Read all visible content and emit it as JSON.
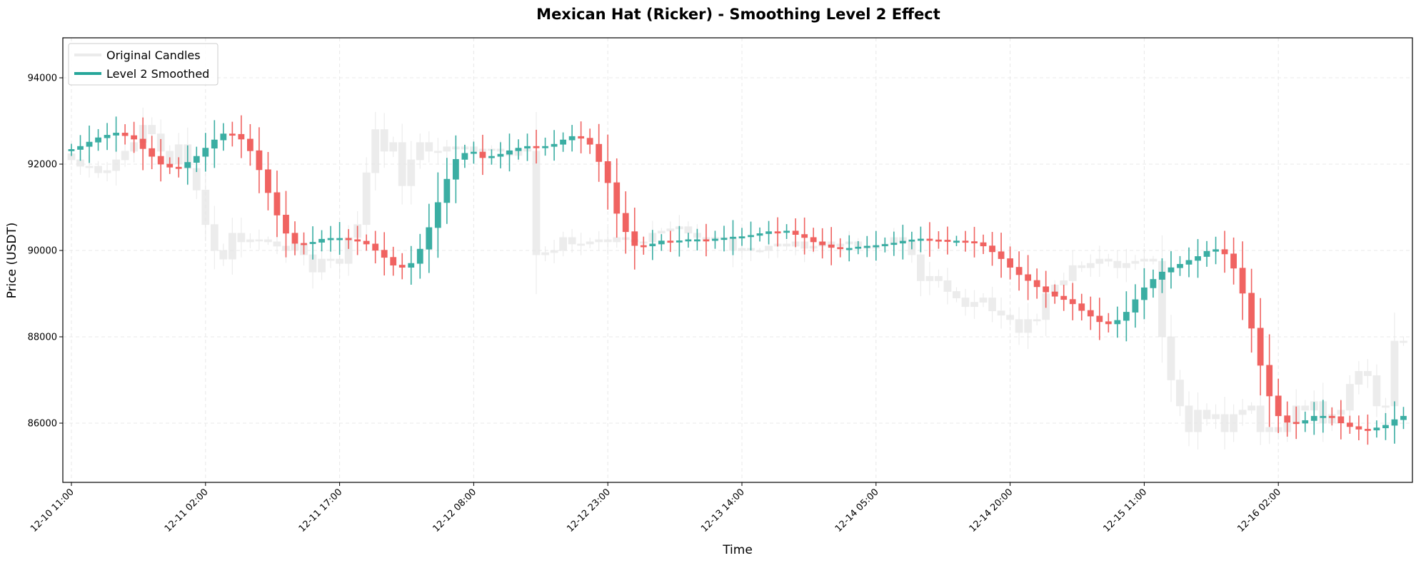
{
  "chart_data": {
    "type": "candlestick",
    "title": "Mexican Hat (Ricker) - Smoothing Level 2 Effect",
    "xlabel": "Time",
    "ylabel": "Price (USDT)",
    "ylim": [
      84628,
      94926
    ],
    "yticks": [
      86000,
      88000,
      90000,
      92000,
      94000
    ],
    "ytick_labels": [
      "86000",
      "88000",
      "90000",
      "92000",
      "94000"
    ],
    "x_interval": "1 hour",
    "xtick_every": 15,
    "xtick_labels": [
      "12-10 11:00",
      "12-11 02:00",
      "12-11 17:00",
      "12-12 08:00",
      "12-12 23:00",
      "12-13 14:00",
      "12-14 05:00",
      "12-14 20:00",
      "12-15 11:00",
      "12-16 02:00"
    ],
    "grid": true,
    "legend_position": "top-left",
    "legend": [
      "Original Candles",
      "Level 2 Smoothed"
    ],
    "colors": {
      "up": "#26a69a",
      "down": "#ef5350",
      "original": "#e6e6e6"
    },
    "series": [
      {
        "name": "Original Candles",
        "first_open": 92240,
        "close": [
          92100,
          91950,
          91950,
          91800,
          91850,
          92100,
          92300,
          92500,
          92900,
          92700,
          92300,
          92000,
          92450,
          91900,
          91400,
          90600,
          90000,
          89800,
          90400,
          90200,
          90250,
          90250,
          90200,
          90100,
          90000,
          90150,
          89900,
          89500,
          89800,
          89800,
          89700,
          90300,
          90600,
          91800,
          92800,
          92300,
          92500,
          91500,
          92100,
          92500,
          92300,
          92300,
          92400,
          92350,
          92400,
          92300,
          92350,
          92350,
          92300,
          92200,
          92350,
          92300,
          89900,
          89950,
          90000,
          90300,
          90150,
          90150,
          90200,
          90250,
          90200,
          90300,
          90250,
          90200,
          90200,
          90400,
          90450,
          90500,
          90550,
          90400,
          90300,
          90250,
          90300,
          90300,
          90000,
          90050,
          90000,
          90000,
          90100,
          90150,
          90100,
          90200,
          90050,
          90100,
          90200,
          90100,
          90150,
          90200,
          90100,
          90050,
          90100,
          90150,
          90300,
          90200,
          89900,
          89300,
          89400,
          89300,
          89050,
          88900,
          88700,
          88800,
          88900,
          88600,
          88500,
          88400,
          88100,
          88400,
          88400,
          89000,
          89200,
          89300,
          89650,
          89600,
          89700,
          89800,
          89750,
          89600,
          89700,
          89750,
          89800,
          89750,
          88000,
          87000,
          86400,
          85800,
          86300,
          86100,
          86200,
          85800,
          86200,
          86300,
          86400,
          85800,
          85900,
          85800,
          86000,
          86400,
          86300,
          86500,
          86000,
          86200,
          86300,
          86900,
          87200,
          87100,
          86400,
          86400,
          87900,
          87900
        ]
      },
      {
        "name": "Level 2 Smoothed",
        "first_open": 92320,
        "close": [
          92340,
          92410,
          92510,
          92610,
          92670,
          92720,
          92660,
          92580,
          92360,
          92180,
          92000,
          91930,
          91920,
          92040,
          92180,
          92370,
          92560,
          92700,
          92690,
          92580,
          92310,
          91870,
          91340,
          90820,
          90400,
          90165,
          90160,
          90190,
          90260,
          90280,
          90280,
          90250,
          90215,
          90150,
          90005,
          89840,
          89660,
          89610,
          89700,
          90030,
          90530,
          91110,
          91650,
          92110,
          92250,
          92280,
          92150,
          92180,
          92230,
          92310,
          92370,
          92410,
          92400,
          92410,
          92460,
          92560,
          92640,
          92600,
          92460,
          92060,
          91570,
          90860,
          90435,
          90115,
          90105,
          90150,
          90220,
          90200,
          90225,
          90250,
          90250,
          90230,
          90265,
          90285,
          90310,
          90320,
          90350,
          90390,
          90435,
          90425,
          90450,
          90370,
          90300,
          90200,
          90130,
          90070,
          90050,
          90050,
          90080,
          90100,
          90115,
          90140,
          90170,
          90215,
          90245,
          90265,
          90245,
          90240,
          90220,
          90220,
          90205,
          90180,
          90105,
          89970,
          89810,
          89610,
          89440,
          89305,
          89160,
          89040,
          88940,
          88865,
          88765,
          88610,
          88480,
          88350,
          88300,
          88380,
          88570,
          88860,
          89135,
          89330,
          89500,
          89600,
          89680,
          89770,
          89860,
          89980,
          90020,
          89920,
          89590,
          89010,
          88200,
          87340,
          86630,
          86170,
          86020,
          86000,
          86060,
          86160,
          86160,
          86150,
          86005,
          85920,
          85860,
          85840,
          85890,
          85950,
          86080,
          86160
        ]
      }
    ]
  }
}
